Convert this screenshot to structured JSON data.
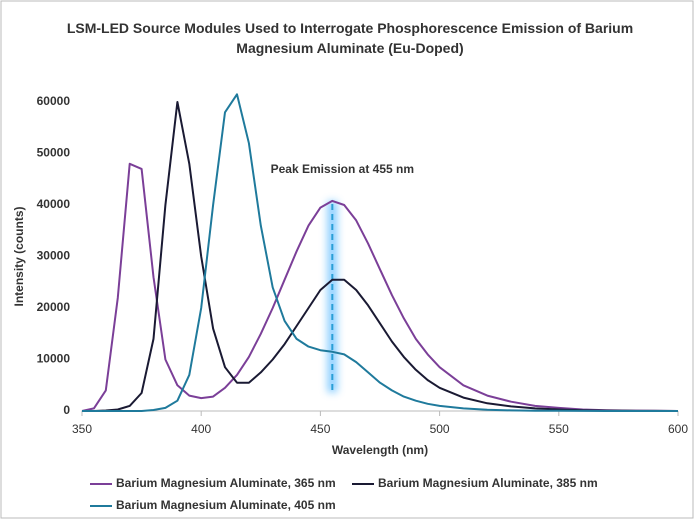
{
  "chart_data": {
    "type": "line",
    "title": "LSM-LED Source Modules Used to Interrogate Phosphorescence Emission of Barium Magnesium Aluminate (Eu-Doped)",
    "xlabel": "Wavelength (nm)",
    "ylabel": "Intensity (counts)",
    "x": [
      350,
      355,
      360,
      365,
      370,
      375,
      380,
      385,
      390,
      395,
      400,
      405,
      410,
      415,
      420,
      425,
      430,
      435,
      440,
      445,
      450,
      455,
      460,
      465,
      470,
      475,
      480,
      485,
      490,
      495,
      500,
      510,
      520,
      530,
      540,
      550,
      560,
      570,
      580,
      590,
      600
    ],
    "series": [
      {
        "name": "Barium Magnesium Aluminate, 365 nm",
        "color": "#7b3f98",
        "values": [
          0,
          500,
          4000,
          22000,
          48000,
          47000,
          26000,
          10000,
          5000,
          3000,
          2500,
          2800,
          4500,
          7000,
          10500,
          15000,
          20000,
          25500,
          31000,
          36000,
          39500,
          40800,
          40000,
          37000,
          32500,
          27500,
          22500,
          18000,
          14000,
          11000,
          8500,
          5000,
          3000,
          1800,
          1000,
          600,
          300,
          150,
          80,
          30,
          0
        ]
      },
      {
        "name": "Barium Magnesium Aluminate, 385 nm",
        "color": "#1a1a33",
        "values": [
          0,
          0,
          100,
          300,
          1000,
          3500,
          14000,
          40000,
          60000,
          48000,
          30000,
          16000,
          8500,
          5500,
          5500,
          7500,
          10000,
          13000,
          16500,
          20000,
          23500,
          25500,
          25500,
          23500,
          20500,
          17000,
          13500,
          10500,
          8000,
          6000,
          4500,
          2600,
          1500,
          900,
          500,
          300,
          150,
          80,
          40,
          20,
          0
        ]
      },
      {
        "name": "Barium Magnesium Aluminate, 405 nm",
        "color": "#1f7a9c",
        "values": [
          0,
          0,
          0,
          0,
          0,
          0,
          200,
          600,
          2000,
          7000,
          20000,
          40000,
          58000,
          61500,
          52000,
          36000,
          24000,
          17500,
          14000,
          12500,
          11800,
          11500,
          11000,
          9500,
          7500,
          5500,
          4000,
          2800,
          2000,
          1400,
          1000,
          500,
          250,
          120,
          60,
          30,
          10,
          0,
          0,
          0,
          0
        ]
      }
    ],
    "annotation": {
      "text": "Peak Emission at 455 nm",
      "x": 455
    },
    "xlim": [
      350,
      600
    ],
    "xticks": [
      350,
      400,
      450,
      500,
      550,
      600
    ],
    "ylim": [
      0,
      60000
    ],
    "yticks": [
      0,
      10000,
      20000,
      30000,
      40000,
      50000,
      60000
    ],
    "grid": false
  }
}
